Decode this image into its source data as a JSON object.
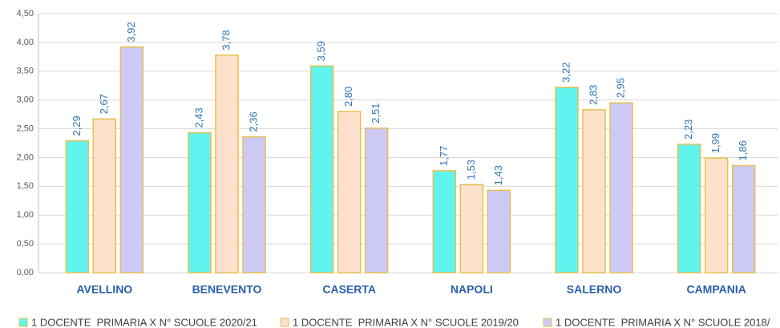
{
  "chart_data": {
    "type": "bar",
    "categories": [
      "AVELLINO",
      "BENEVENTO",
      "CASERTA",
      "NAPOLI",
      "SALERNO",
      "CAMPANIA"
    ],
    "series": [
      {
        "name": "1 DOCENTE  PRIMARIA X N° SCUOLE 2020/21",
        "color": "#5ff5ee",
        "values": [
          2.29,
          2.43,
          3.59,
          1.77,
          3.22,
          2.23
        ],
        "value_labels": [
          "2,29",
          "2,43",
          "3,59",
          "1,77",
          "3,22",
          "2,23"
        ]
      },
      {
        "name": "1 DOCENTE  PRIMARIA X N° SCUOLE 2019/20",
        "color": "#fde1cd",
        "values": [
          2.67,
          3.78,
          2.8,
          1.53,
          2.83,
          1.99
        ],
        "value_labels": [
          "2,67",
          "3,78",
          "2,80",
          "1,53",
          "2,83",
          "1,99"
        ]
      },
      {
        "name": "1 DOCENTE  PRIMARIA X N° SCUOLE 2018/",
        "color": "#ccc9f5",
        "values": [
          3.92,
          2.36,
          2.51,
          1.43,
          2.95,
          1.86
        ],
        "value_labels": [
          "3,92",
          "2,36",
          "2,51",
          "1,43",
          "2,95",
          "1,86"
        ]
      }
    ],
    "ylim": [
      0,
      4.5
    ],
    "yticks": [
      {
        "value": 0,
        "label": "0,00"
      },
      {
        "value": 0.5,
        "label": "0,50"
      },
      {
        "value": 1,
        "label": "1,00"
      },
      {
        "value": 1.5,
        "label": "1,50"
      },
      {
        "value": 2,
        "label": "2,00"
      },
      {
        "value": 2.5,
        "label": "2,50"
      },
      {
        "value": 3,
        "label": "3,00"
      },
      {
        "value": 3.5,
        "label": "3,50"
      },
      {
        "value": 4,
        "label": "4,00"
      },
      {
        "value": 4.5,
        "label": "4,50"
      }
    ],
    "grid": true,
    "legend": "bottom"
  }
}
